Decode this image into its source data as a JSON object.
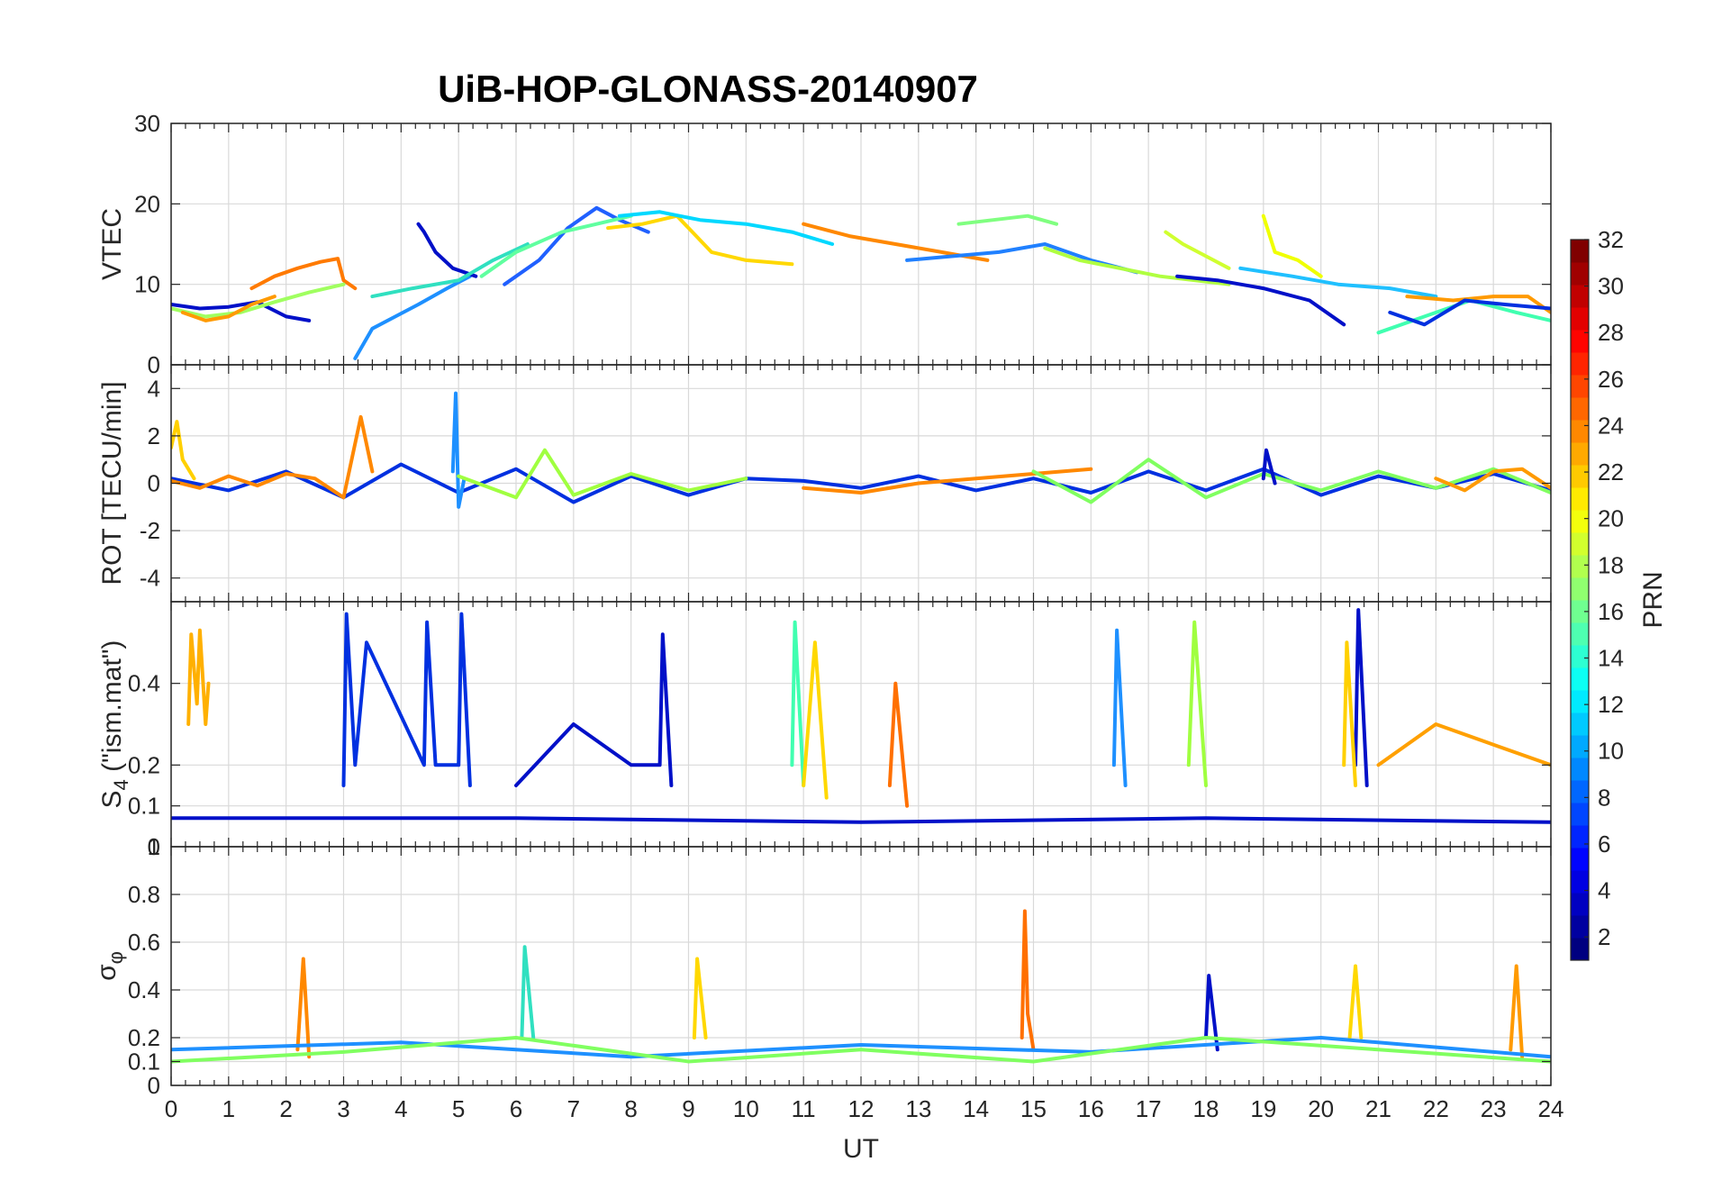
{
  "chart_data": [
    {
      "type": "line",
      "panel": "vtec",
      "title": "UiB-HOP-GLONASS-20140907",
      "xlabel": "",
      "ylabel": "VTEC",
      "xlim": [
        0,
        24
      ],
      "ylim": [
        0,
        30
      ],
      "yticks": [
        0,
        10,
        20,
        30
      ],
      "grid": true,
      "series": [
        {
          "color": "#0010c8",
          "x": [
            0,
            0.5,
            1,
            1.5,
            2,
            2.4
          ],
          "y": [
            7.5,
            7.0,
            7.2,
            7.8,
            6.0,
            5.5
          ]
        },
        {
          "color": "#ff7a00",
          "x": [
            1.4,
            1.8,
            2.2,
            2.6,
            2.9,
            3.0,
            3.2
          ],
          "y": [
            9.5,
            11.0,
            12.0,
            12.8,
            13.2,
            10.5,
            9.5
          ]
        },
        {
          "color": "#a0ff60",
          "x": [
            0,
            0.6,
            1.2,
            1.8,
            2.4,
            3.0
          ],
          "y": [
            7.0,
            6.0,
            6.5,
            7.8,
            9.0,
            10.0
          ]
        },
        {
          "color": "#ff9a00",
          "x": [
            0.2,
            0.6,
            1.0,
            1.4,
            1.8
          ],
          "y": [
            6.5,
            5.5,
            6.0,
            7.5,
            8.5
          ]
        },
        {
          "color": "#1e90ff",
          "x": [
            3.2,
            3.5,
            3.9,
            4.3,
            4.8,
            5.2
          ],
          "y": [
            0.8,
            4.5,
            6.0,
            7.5,
            9.5,
            11.0
          ]
        },
        {
          "color": "#0010c8",
          "x": [
            4.3,
            4.4,
            4.6,
            4.9,
            5.3
          ],
          "y": [
            17.5,
            16.5,
            14.0,
            12.0,
            11.0
          ]
        },
        {
          "color": "#30e0c0",
          "x": [
            3.5,
            4.2,
            5.0,
            5.6,
            6.2
          ],
          "y": [
            8.5,
            9.5,
            10.5,
            13.0,
            15.0
          ]
        },
        {
          "color": "#2060ff",
          "x": [
            5.8,
            6.4,
            6.9,
            7.4,
            7.8,
            8.3
          ],
          "y": [
            10.0,
            13.0,
            17.0,
            19.5,
            18.0,
            16.5
          ]
        },
        {
          "color": "#60ffa0",
          "x": [
            5.4,
            6.0,
            6.8,
            7.4,
            8.0
          ],
          "y": [
            11.0,
            14.0,
            16.5,
            17.5,
            18.5
          ]
        },
        {
          "color": "#ffd800",
          "x": [
            7.6,
            8.2,
            8.8,
            9.4,
            10.0,
            10.8
          ],
          "y": [
            17.0,
            17.5,
            18.5,
            14.0,
            13.0,
            12.5
          ]
        },
        {
          "color": "#00d8ff",
          "x": [
            7.8,
            8.5,
            9.2,
            10.0,
            10.8,
            11.5
          ],
          "y": [
            18.5,
            19.0,
            18.0,
            17.5,
            16.5,
            15.0
          ]
        },
        {
          "color": "#ff8800",
          "x": [
            11.0,
            11.8,
            12.6,
            13.4,
            14.2
          ],
          "y": [
            17.5,
            16.0,
            15.0,
            14.0,
            13.0
          ]
        },
        {
          "color": "#80ff80",
          "x": [
            13.7,
            14.3,
            14.9,
            15.4
          ],
          "y": [
            17.5,
            18.0,
            18.5,
            17.5
          ]
        },
        {
          "color": "#2080ff",
          "x": [
            12.8,
            13.6,
            14.4,
            15.2,
            16.0,
            16.8
          ],
          "y": [
            13.0,
            13.5,
            14.0,
            15.0,
            13.0,
            11.5
          ]
        },
        {
          "color": "#b0ff40",
          "x": [
            15.2,
            15.8,
            16.5,
            17.2,
            17.8,
            18.4
          ],
          "y": [
            14.5,
            13.0,
            12.0,
            11.0,
            10.5,
            10.0
          ]
        },
        {
          "color": "#d0ff30",
          "x": [
            17.3,
            17.6,
            18.0,
            18.4
          ],
          "y": [
            16.5,
            15.0,
            13.5,
            12.0
          ]
        },
        {
          "color": "#f0ff00",
          "x": [
            19.0,
            19.2,
            19.6,
            20.0
          ],
          "y": [
            18.5,
            14.0,
            13.0,
            11.0
          ]
        },
        {
          "color": "#0010c8",
          "x": [
            17.5,
            18.2,
            19.0,
            19.8,
            20.4
          ],
          "y": [
            11.0,
            10.5,
            9.5,
            8.0,
            5.0
          ]
        },
        {
          "color": "#20c0ff",
          "x": [
            18.6,
            19.5,
            20.3,
            21.2,
            22.0
          ],
          "y": [
            12.0,
            11.0,
            10.0,
            9.5,
            8.5
          ]
        },
        {
          "color": "#ff9a00",
          "x": [
            21.5,
            22.3,
            23.0,
            23.6,
            24.0
          ],
          "y": [
            8.5,
            8.0,
            8.5,
            8.5,
            6.5
          ]
        },
        {
          "color": "#40ffb0",
          "x": [
            21.0,
            21.8,
            22.6,
            23.4,
            24.0
          ],
          "y": [
            4.0,
            6.0,
            8.0,
            6.5,
            5.5
          ]
        },
        {
          "color": "#0030e0",
          "x": [
            21.2,
            21.8,
            22.5,
            23.2,
            24.0
          ],
          "y": [
            6.5,
            5.0,
            8.0,
            7.5,
            7.0
          ]
        }
      ]
    },
    {
      "type": "line",
      "panel": "rot",
      "xlabel": "",
      "ylabel": "ROT [TECU/min]",
      "xlim": [
        0,
        24
      ],
      "ylim": [
        -5,
        5
      ],
      "yticks": [
        -4,
        -2,
        0,
        2,
        4
      ],
      "grid": true,
      "series": [
        {
          "color": "#0030e0",
          "x": [
            0,
            1,
            2,
            3,
            4,
            5,
            6,
            7,
            8,
            9,
            10,
            11,
            12,
            13,
            14,
            15,
            16,
            17,
            18,
            19,
            20,
            21,
            22,
            23,
            24
          ],
          "y": [
            0.2,
            -0.3,
            0.5,
            -0.6,
            0.8,
            -0.4,
            0.6,
            -0.8,
            0.3,
            -0.5,
            0.2,
            0.1,
            -0.2,
            0.3,
            -0.3,
            0.2,
            -0.4,
            0.5,
            -0.3,
            0.6,
            -0.5,
            0.3,
            -0.2,
            0.4,
            -0.3
          ]
        },
        {
          "color": "#ff8800",
          "x": [
            0,
            0.5,
            1,
            1.5,
            2,
            2.5,
            3,
            3.3,
            3.5
          ],
          "y": [
            0.1,
            -0.2,
            0.3,
            -0.1,
            0.4,
            0.2,
            -0.6,
            2.8,
            0.5
          ]
        },
        {
          "color": "#ffd000",
          "x": [
            0,
            0.1,
            0.2,
            0.4
          ],
          "y": [
            1.5,
            2.6,
            1.0,
            0.2
          ]
        },
        {
          "color": "#1e90ff",
          "x": [
            4.9,
            4.95,
            5.0,
            5.1
          ],
          "y": [
            0.5,
            3.8,
            -1.0,
            0.2
          ]
        },
        {
          "color": "#a0ff40",
          "x": [
            5,
            6,
            6.5,
            7,
            8,
            9,
            10
          ],
          "y": [
            0.3,
            -0.6,
            1.4,
            -0.5,
            0.4,
            -0.3,
            0.2
          ]
        },
        {
          "color": "#ff8800",
          "x": [
            11,
            12,
            13,
            14,
            15,
            16
          ],
          "y": [
            -0.2,
            -0.4,
            0.0,
            0.2,
            0.4,
            0.6
          ]
        },
        {
          "color": "#80ff60",
          "x": [
            15,
            16,
            17,
            18,
            19,
            20,
            21,
            22,
            23,
            24
          ],
          "y": [
            0.5,
            -0.8,
            1.0,
            -0.6,
            0.4,
            -0.3,
            0.5,
            -0.2,
            0.6,
            -0.4
          ]
        },
        {
          "color": "#0010c8",
          "x": [
            19,
            19.05,
            19.2
          ],
          "y": [
            0.2,
            1.4,
            0.0
          ]
        },
        {
          "color": "#ff9a00",
          "x": [
            22,
            22.5,
            23,
            23.5,
            24
          ],
          "y": [
            0.2,
            -0.3,
            0.5,
            0.6,
            -0.2
          ]
        }
      ]
    },
    {
      "type": "line",
      "panel": "s4",
      "xlabel": "",
      "ylabel": "S4 (\"ism.mat\")",
      "ylabel_main": "S",
      "ylabel_sub": "4",
      "ylabel_rest": " (\"ism.mat\")",
      "xlim": [
        0,
        24
      ],
      "ylim": [
        0,
        0.6
      ],
      "ytick_values": [
        0.1,
        0.2,
        0.4
      ],
      "yticks": [
        "0.1",
        "0.2",
        "0.4"
      ],
      "extra_bottom_labels": [
        "0",
        "1"
      ],
      "grid": true,
      "series": [
        {
          "color": "#ffb000",
          "x": [
            0.3,
            0.35,
            0.45,
            0.5,
            0.6,
            0.65
          ],
          "y": [
            0.3,
            0.52,
            0.35,
            0.53,
            0.3,
            0.4
          ]
        },
        {
          "color": "#0030e0",
          "x": [
            3,
            3.05,
            3.2,
            3.4,
            4.4,
            4.45,
            4.6,
            5.0,
            5.05,
            5.2
          ],
          "y": [
            0.15,
            0.57,
            0.2,
            0.5,
            0.2,
            0.55,
            0.2,
            0.2,
            0.57,
            0.15
          ]
        },
        {
          "color": "#0010c8",
          "x": [
            6,
            7,
            8,
            8.5,
            8.55,
            8.7
          ],
          "y": [
            0.15,
            0.3,
            0.2,
            0.2,
            0.52,
            0.15
          ]
        },
        {
          "color": "#40ffb0",
          "x": [
            10.8,
            10.85,
            11.0
          ],
          "y": [
            0.2,
            0.55,
            0.15
          ]
        },
        {
          "color": "#ffd800",
          "x": [
            11,
            11.2,
            11.4
          ],
          "y": [
            0.15,
            0.5,
            0.12
          ]
        },
        {
          "color": "#ff7000",
          "x": [
            12.5,
            12.6,
            12.8
          ],
          "y": [
            0.15,
            0.4,
            0.1
          ]
        },
        {
          "color": "#1e90ff",
          "x": [
            16.4,
            16.45,
            16.6
          ],
          "y": [
            0.2,
            0.53,
            0.15
          ]
        },
        {
          "color": "#a0ff40",
          "x": [
            17.7,
            17.8,
            18.0
          ],
          "y": [
            0.2,
            0.55,
            0.15
          ]
        },
        {
          "color": "#0010c8",
          "x": [
            20.6,
            20.65,
            20.8
          ],
          "y": [
            0.2,
            0.58,
            0.15
          ]
        },
        {
          "color": "#ffd000",
          "x": [
            20.4,
            20.45,
            20.6
          ],
          "y": [
            0.2,
            0.5,
            0.15
          ]
        },
        {
          "color": "#ffa000",
          "x": [
            21,
            22,
            23,
            24
          ],
          "y": [
            0.2,
            0.3,
            0.25,
            0.2
          ]
        },
        {
          "color": "#0010c8",
          "x": [
            0,
            6,
            12,
            18,
            24
          ],
          "y": [
            0.07,
            0.07,
            0.06,
            0.07,
            0.06
          ]
        }
      ]
    },
    {
      "type": "line",
      "panel": "sigma_phi",
      "xlabel": "UT",
      "ylabel": "σ_φ",
      "ylabel_main": "σ",
      "ylabel_sub": "φ",
      "xlim": [
        0,
        24
      ],
      "ylim": [
        0,
        1.0
      ],
      "ytick_values": [
        0,
        0.1,
        0.2,
        0.4,
        0.6,
        0.8
      ],
      "yticks": [
        "0",
        "0.1",
        "0.2",
        "0.4",
        "0.6",
        "0.8"
      ],
      "xticks": [
        "0",
        "1",
        "2",
        "3",
        "4",
        "5",
        "6",
        "7",
        "8",
        "9",
        "10",
        "11",
        "12",
        "13",
        "14",
        "15",
        "16",
        "17",
        "18",
        "19",
        "20",
        "21",
        "22",
        "23",
        "24"
      ],
      "grid": true,
      "series": [
        {
          "color": "#ff8800",
          "x": [
            2.2,
            2.3,
            2.4
          ],
          "y": [
            0.15,
            0.53,
            0.12
          ]
        },
        {
          "color": "#30e0c0",
          "x": [
            6.1,
            6.15,
            6.3
          ],
          "y": [
            0.2,
            0.58,
            0.2
          ]
        },
        {
          "color": "#ffd800",
          "x": [
            9.1,
            9.15,
            9.3
          ],
          "y": [
            0.2,
            0.53,
            0.2
          ]
        },
        {
          "color": "#ff7000",
          "x": [
            14.8,
            14.85,
            14.9,
            15.0
          ],
          "y": [
            0.2,
            0.73,
            0.3,
            0.15
          ]
        },
        {
          "color": "#0010c8",
          "x": [
            18.0,
            18.05,
            18.2
          ],
          "y": [
            0.2,
            0.46,
            0.15
          ]
        },
        {
          "color": "#ffd800",
          "x": [
            20.5,
            20.6,
            20.7
          ],
          "y": [
            0.2,
            0.5,
            0.2
          ]
        },
        {
          "color": "#ff9a00",
          "x": [
            23.3,
            23.4,
            23.5
          ],
          "y": [
            0.15,
            0.5,
            0.12
          ]
        },
        {
          "color": "#1e90ff",
          "x": [
            0,
            4,
            8,
            12,
            16,
            20,
            24
          ],
          "y": [
            0.15,
            0.18,
            0.12,
            0.17,
            0.14,
            0.2,
            0.12
          ]
        },
        {
          "color": "#80ff60",
          "x": [
            0,
            3,
            6,
            9,
            12,
            15,
            18,
            21,
            24
          ],
          "y": [
            0.1,
            0.14,
            0.2,
            0.1,
            0.15,
            0.1,
            0.2,
            0.15,
            0.1
          ]
        }
      ]
    }
  ],
  "colorbar": {
    "label": "PRN",
    "range": [
      1,
      32
    ],
    "ticks": [
      2,
      4,
      6,
      8,
      10,
      12,
      14,
      16,
      18,
      20,
      22,
      24,
      26,
      28,
      30,
      32
    ],
    "colormap": "jet"
  }
}
